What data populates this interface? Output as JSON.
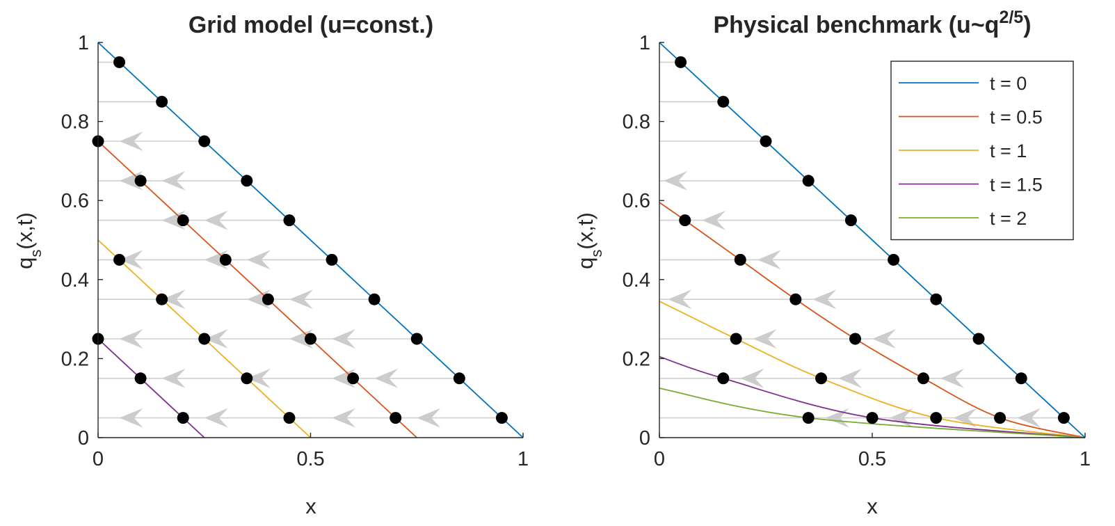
{
  "chart_data": [
    {
      "type": "line",
      "title": "Grid model (u=const.)",
      "xlabel": "x",
      "ylabel": "q_s(x,t)",
      "xlim": [
        0,
        1
      ],
      "ylim": [
        0,
        1
      ],
      "xticks": [
        "0",
        "0.5",
        "1"
      ],
      "yticks": [
        "0",
        "0.2",
        "0.4",
        "0.6",
        "0.8",
        "1"
      ],
      "series": [
        {
          "t": 0,
          "color": "#0072BD",
          "x": [
            0,
            1
          ],
          "y": [
            1,
            0
          ]
        },
        {
          "t": 0.5,
          "color": "#D95319",
          "x": [
            0,
            0.75
          ],
          "y": [
            0.75,
            0
          ]
        },
        {
          "t": 1,
          "color": "#EDB120",
          "x": [
            0,
            0.5
          ],
          "y": [
            0.5,
            0
          ]
        },
        {
          "t": 1.5,
          "color": "#7E2F8E",
          "x": [
            0,
            0.25
          ],
          "y": [
            0.25,
            0
          ]
        }
      ],
      "points": [
        [
          0.05,
          0.95
        ],
        [
          0.15,
          0.85
        ],
        [
          0.25,
          0.75
        ],
        [
          0.35,
          0.65
        ],
        [
          0.45,
          0.55
        ],
        [
          0.55,
          0.45
        ],
        [
          0.65,
          0.35
        ],
        [
          0.75,
          0.25
        ],
        [
          0.85,
          0.15
        ],
        [
          0.95,
          0.05
        ],
        [
          0,
          0.75
        ],
        [
          0.1,
          0.65
        ],
        [
          0.2,
          0.55
        ],
        [
          0.3,
          0.45
        ],
        [
          0.4,
          0.35
        ],
        [
          0.5,
          0.25
        ],
        [
          0.6,
          0.15
        ],
        [
          0.7,
          0.05
        ],
        [
          0.05,
          0.45
        ],
        [
          0.15,
          0.35
        ],
        [
          0.25,
          0.25
        ],
        [
          0.35,
          0.15
        ],
        [
          0.45,
          0.05
        ],
        [
          0,
          0.25
        ],
        [
          0.1,
          0.15
        ],
        [
          0.2,
          0.05
        ]
      ],
      "guide_lines": [
        {
          "y": 0.95,
          "x_end": 0.05
        },
        {
          "y": 0.85,
          "x_end": 0.15
        },
        {
          "y": 0.75,
          "x_end": 0.25
        },
        {
          "y": 0.65,
          "x_end": 0.35
        },
        {
          "y": 0.55,
          "x_end": 0.45
        },
        {
          "y": 0.45,
          "x_end": 0.55
        },
        {
          "y": 0.35,
          "x_end": 0.65
        },
        {
          "y": 0.25,
          "x_end": 0.75
        },
        {
          "y": 0.15,
          "x_end": 0.85
        },
        {
          "y": 0.05,
          "x_end": 0.95
        }
      ],
      "arrows": [
        [
          0.05,
          0.75
        ],
        [
          0.15,
          0.65
        ],
        [
          0.05,
          0.65
        ],
        [
          0.25,
          0.55
        ],
        [
          0.15,
          0.55
        ],
        [
          0.35,
          0.45
        ],
        [
          0.25,
          0.45
        ],
        [
          0.05,
          0.45
        ],
        [
          0.45,
          0.35
        ],
        [
          0.35,
          0.35
        ],
        [
          0.15,
          0.35
        ],
        [
          0.55,
          0.25
        ],
        [
          0.45,
          0.25
        ],
        [
          0.25,
          0.25
        ],
        [
          0.05,
          0.25
        ],
        [
          0.65,
          0.15
        ],
        [
          0.55,
          0.15
        ],
        [
          0.35,
          0.15
        ],
        [
          0.15,
          0.15
        ],
        [
          0.75,
          0.05
        ],
        [
          0.55,
          0.05
        ],
        [
          0.25,
          0.05
        ],
        [
          0.05,
          0.05
        ]
      ]
    },
    {
      "type": "line",
      "title": "Physical benchmark (u~q",
      "title_sup": "2/5",
      "title_end": ")",
      "xlabel": "x",
      "ylabel": "q_s(x,t)",
      "xlim": [
        0,
        1
      ],
      "ylim": [
        0,
        1
      ],
      "xticks": [
        "0",
        "0.5",
        "1"
      ],
      "yticks": [
        "0",
        "0.2",
        "0.4",
        "0.6",
        "0.8",
        "1"
      ],
      "legend_position": "top-right",
      "series": [
        {
          "name": "t = 0",
          "color": "#0072BD",
          "x": [
            0,
            1
          ],
          "y": [
            1,
            0
          ]
        },
        {
          "name": "t = 0.5",
          "color": "#D95319",
          "x": [
            0,
            0.06,
            0.19,
            0.32,
            0.46,
            0.62,
            0.8,
            1
          ],
          "y": [
            0.595,
            0.55,
            0.45,
            0.35,
            0.25,
            0.15,
            0.05,
            0
          ]
        },
        {
          "name": "t = 1",
          "color": "#EDB120",
          "x": [
            0,
            0.18,
            0.38,
            0.65,
            1
          ],
          "y": [
            0.345,
            0.25,
            0.15,
            0.05,
            0
          ]
        },
        {
          "name": "t = 1.5",
          "color": "#7E2F8E",
          "x": [
            0,
            0.15,
            0.5,
            1
          ],
          "y": [
            0.205,
            0.15,
            0.05,
            0
          ]
        },
        {
          "name": "t = 2",
          "color": "#77AC30",
          "x": [
            0,
            0.35,
            1
          ],
          "y": [
            0.125,
            0.05,
            0
          ]
        }
      ],
      "points": [
        [
          0.05,
          0.95
        ],
        [
          0.15,
          0.85
        ],
        [
          0.25,
          0.75
        ],
        [
          0.35,
          0.65
        ],
        [
          0.45,
          0.55
        ],
        [
          0.55,
          0.45
        ],
        [
          0.65,
          0.35
        ],
        [
          0.75,
          0.25
        ],
        [
          0.85,
          0.15
        ],
        [
          0.95,
          0.05
        ],
        [
          0.06,
          0.55
        ],
        [
          0.19,
          0.45
        ],
        [
          0.32,
          0.35
        ],
        [
          0.46,
          0.25
        ],
        [
          0.62,
          0.15
        ],
        [
          0.8,
          0.05
        ],
        [
          0.18,
          0.25
        ],
        [
          0.38,
          0.15
        ],
        [
          0.65,
          0.05
        ],
        [
          0.15,
          0.15
        ],
        [
          0.5,
          0.05
        ],
        [
          0.35,
          0.05
        ]
      ],
      "guide_lines": [
        {
          "y": 0.95,
          "x_end": 0.05
        },
        {
          "y": 0.85,
          "x_end": 0.15
        },
        {
          "y": 0.75,
          "x_end": 0.25
        },
        {
          "y": 0.65,
          "x_end": 0.35
        },
        {
          "y": 0.55,
          "x_end": 0.45
        },
        {
          "y": 0.45,
          "x_end": 0.55
        },
        {
          "y": 0.35,
          "x_end": 0.65
        },
        {
          "y": 0.25,
          "x_end": 0.75
        },
        {
          "y": 0.15,
          "x_end": 0.85
        },
        {
          "y": 0.05,
          "x_end": 0.95
        }
      ],
      "arrows": [
        [
          0.01,
          0.65
        ],
        [
          0.1,
          0.55
        ],
        [
          0.23,
          0.45
        ],
        [
          0.36,
          0.35
        ],
        [
          0.02,
          0.35
        ],
        [
          0.5,
          0.25
        ],
        [
          0.22,
          0.25
        ],
        [
          0.66,
          0.15
        ],
        [
          0.42,
          0.15
        ],
        [
          0.19,
          0.15
        ],
        [
          0.84,
          0.05
        ],
        [
          0.69,
          0.05
        ],
        [
          0.54,
          0.05
        ],
        [
          0.39,
          0.05
        ]
      ]
    }
  ]
}
